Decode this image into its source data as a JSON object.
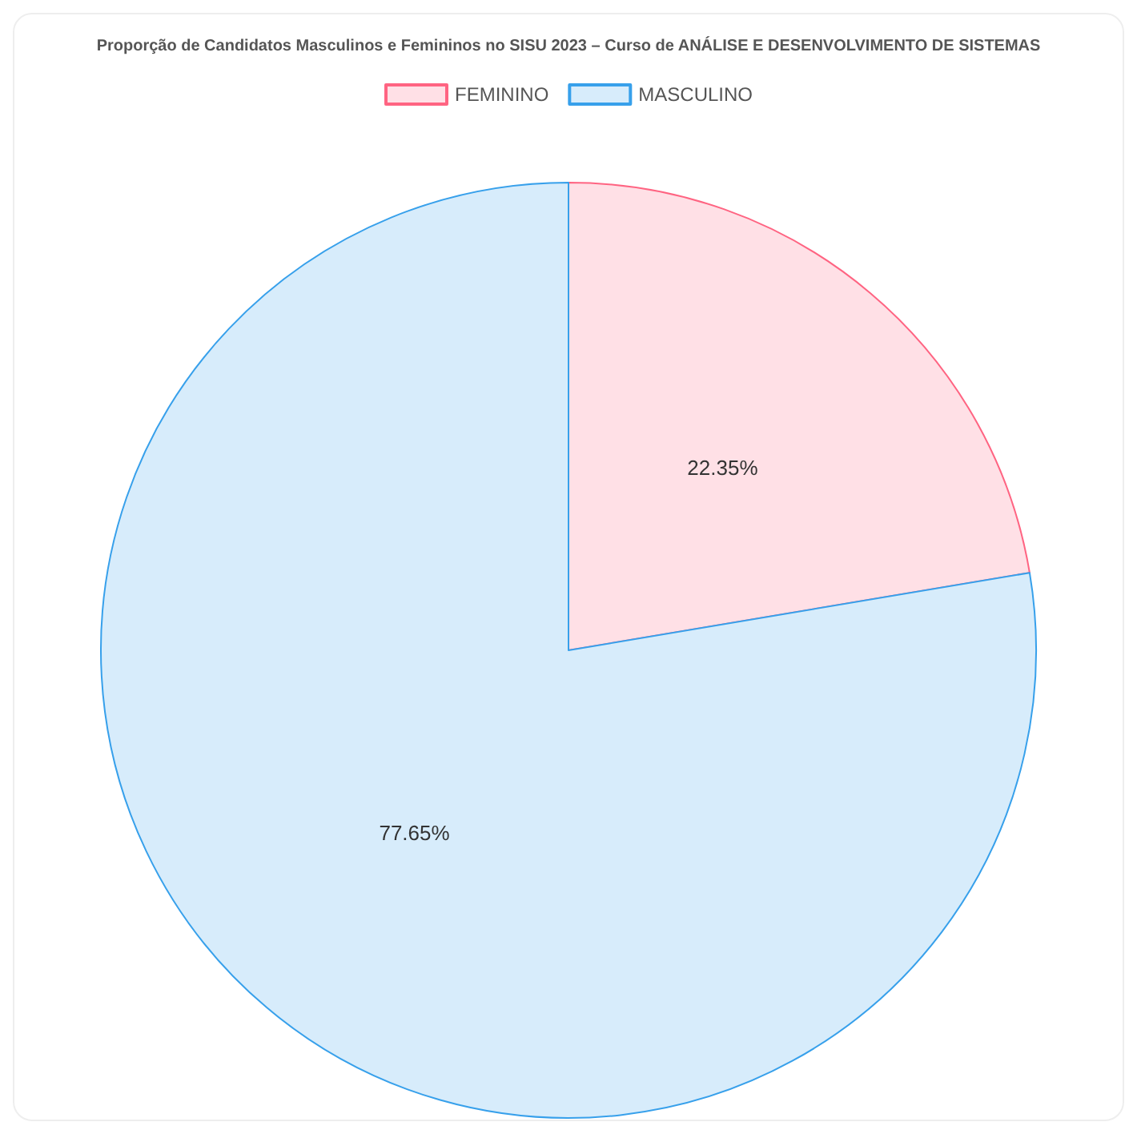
{
  "chart_data": {
    "type": "pie",
    "title": "Proporção de Candidatos Masculinos e Femininos no SISU 2023 – Curso de ANÁLISE E DESENVOLVIMENTO DE SISTEMAS",
    "categories": [
      "FEMININO",
      "MASCULINO"
    ],
    "values": [
      22.35,
      77.65
    ],
    "colors": [
      "#ffe0e6",
      "#d7ecfb"
    ],
    "value_labels": [
      "22.35%",
      "77.65%"
    ],
    "legend": "top"
  }
}
